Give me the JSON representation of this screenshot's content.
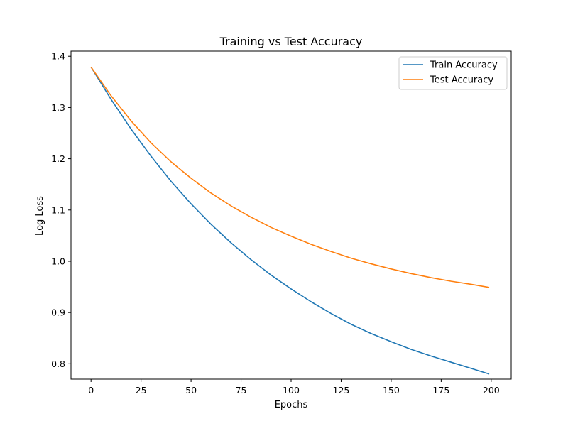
{
  "chart_data": {
    "type": "line",
    "title": "Training vs Test Accuracy",
    "xlabel": "Epochs",
    "ylabel": "Log Loss",
    "xlim": [
      -10,
      210
    ],
    "ylim": [
      0.77,
      1.41
    ],
    "xticks": [
      0,
      25,
      50,
      75,
      100,
      125,
      150,
      175,
      200
    ],
    "yticks": [
      0.8,
      0.9,
      1.0,
      1.1,
      1.2,
      1.3,
      1.4
    ],
    "ytick_labels": [
      "0.8",
      "0.9",
      "1.0",
      "1.1",
      "1.2",
      "1.3",
      "1.4"
    ],
    "grid": false,
    "legend_position": "top-right",
    "x": [
      0,
      10,
      20,
      30,
      40,
      50,
      60,
      70,
      80,
      90,
      100,
      110,
      120,
      130,
      140,
      150,
      160,
      170,
      180,
      190,
      199
    ],
    "series": [
      {
        "name": "Train Accuracy",
        "color": "#1f77b4",
        "values": [
          1.379,
          1.316,
          1.258,
          1.205,
          1.156,
          1.112,
          1.072,
          1.036,
          1.003,
          0.973,
          0.946,
          0.921,
          0.898,
          0.877,
          0.859,
          0.843,
          0.828,
          0.815,
          0.803,
          0.791,
          0.78
        ]
      },
      {
        "name": "Test Accuracy",
        "color": "#ff7f0e",
        "values": [
          1.379,
          1.323,
          1.274,
          1.231,
          1.194,
          1.162,
          1.133,
          1.108,
          1.086,
          1.066,
          1.049,
          1.033,
          1.019,
          1.006,
          0.995,
          0.985,
          0.976,
          0.968,
          0.961,
          0.955,
          0.949
        ]
      }
    ]
  }
}
